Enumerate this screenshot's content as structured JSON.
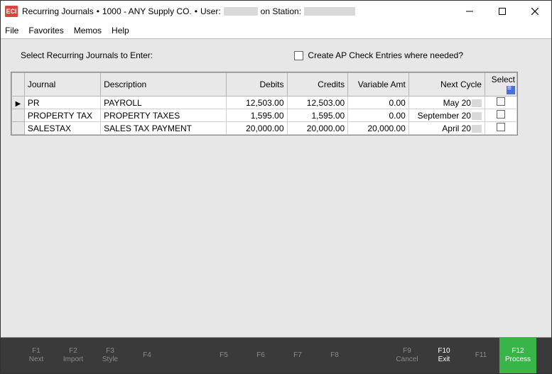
{
  "titlebar": {
    "app_icon_text": "ECI",
    "title_prefix": "Recurring Journals",
    "sep": "•",
    "company": "1000 - ANY Supply CO.",
    "user_label": "User:",
    "station_label": "on Station:"
  },
  "menu": {
    "file": "File",
    "favorites": "Favorites",
    "memos": "Memos",
    "help": "Help"
  },
  "content": {
    "prompt": "Select Recurring Journals to Enter:",
    "ap_label": "Create AP Check Entries where needed?"
  },
  "grid": {
    "columns": {
      "journal": "Journal",
      "description": "Description",
      "debits": "Debits",
      "credits": "Credits",
      "variable": "Variable Amt",
      "next_cycle": "Next Cycle",
      "select": "Select"
    },
    "rows": [
      {
        "pointer": true,
        "journal": "PR",
        "description": "PAYROLL",
        "debits": "12,503.00",
        "credits": "12,503.00",
        "variable": "0.00",
        "next_cycle": "May 20"
      },
      {
        "pointer": false,
        "journal": "PROPERTY TAX",
        "description": "PROPERTY TAXES",
        "debits": "1,595.00",
        "credits": "1,595.00",
        "variable": "0.00",
        "next_cycle": "September 20"
      },
      {
        "pointer": false,
        "journal": "SALESTAX",
        "description": "SALES TAX PAYMENT",
        "debits": "20,000.00",
        "credits": "20,000.00",
        "variable": "20,000.00",
        "next_cycle": "April 20"
      }
    ]
  },
  "footer": {
    "f1": {
      "key": "F1",
      "label": "Next"
    },
    "f2": {
      "key": "F2",
      "label": "Import"
    },
    "f3": {
      "key": "F3",
      "label": "Style"
    },
    "f4": {
      "key": "F4",
      "label": ""
    },
    "f5": {
      "key": "F5",
      "label": ""
    },
    "f6": {
      "key": "F6",
      "label": ""
    },
    "f7": {
      "key": "F7",
      "label": ""
    },
    "f8": {
      "key": "F8",
      "label": ""
    },
    "f9": {
      "key": "F9",
      "label": "Cancel"
    },
    "f10": {
      "key": "F10",
      "label": "Exit"
    },
    "f11": {
      "key": "F11",
      "label": ""
    },
    "f12": {
      "key": "F12",
      "label": "Process"
    }
  },
  "colors": {
    "window_bg": "#ffffff",
    "content_bg": "#e7e7e7",
    "footer_bg": "#3a3a3a",
    "footer_disabled": "#8a8a8a",
    "footer_enabled": "#ffffff",
    "process_bg": "#38b549",
    "app_icon_bg": "#d9463e",
    "grid_header_bg": "#e8e8e8",
    "grid_border": "#b5b5b5",
    "cell_border": "#d0d0d0",
    "select_header_icon_bg": "#4a6fd6",
    "redact_bg": "#d9d9d9"
  }
}
